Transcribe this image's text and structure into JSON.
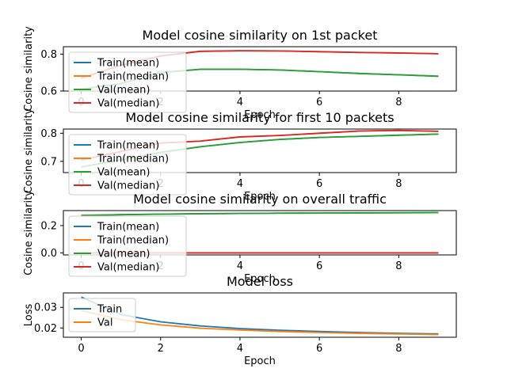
{
  "chart_data": [
    {
      "type": "line",
      "title": "Model cosine similarity on 1st packet",
      "xlabel": "Epoch",
      "ylabel": "Cosine similarity",
      "xlim": [
        -0.45,
        9.45
      ],
      "ylim": [
        0.6,
        0.84
      ],
      "xticks": [
        0,
        2,
        4,
        6,
        8
      ],
      "yticks": [
        0.6,
        0.8
      ],
      "grid": false,
      "legend": "upper left",
      "x": [
        0,
        1,
        2,
        3,
        4,
        5,
        6,
        7,
        8,
        9
      ],
      "series": [
        {
          "name": "Train(mean)",
          "color": "#1f77b4",
          "values": [
            0.61,
            0.64,
            0.7,
            0.718,
            0.718,
            0.714,
            0.705,
            0.695,
            0.688,
            0.68
          ]
        },
        {
          "name": "Train(median)",
          "color": "#ff7f0e",
          "values": [
            0.67,
            0.74,
            0.79,
            0.815,
            0.818,
            0.817,
            0.813,
            0.809,
            0.806,
            0.802
          ]
        },
        {
          "name": "Val(mean)",
          "color": "#2ca02c",
          "values": [
            0.61,
            0.64,
            0.7,
            0.718,
            0.718,
            0.714,
            0.705,
            0.695,
            0.688,
            0.68
          ]
        },
        {
          "name": "Val(median)",
          "color": "#d62728",
          "values": [
            0.67,
            0.74,
            0.79,
            0.815,
            0.818,
            0.817,
            0.813,
            0.809,
            0.806,
            0.802
          ]
        }
      ]
    },
    {
      "type": "line",
      "title": "Model cosine similarity for first 10 packets",
      "xlabel": "Epoch",
      "ylabel": "Cosine similarity",
      "xlim": [
        -0.45,
        9.45
      ],
      "ylim": [
        0.66,
        0.815
      ],
      "xticks": [
        0,
        2,
        4,
        6,
        8
      ],
      "yticks": [
        0.7,
        0.8
      ],
      "grid": false,
      "legend": "upper left",
      "x": [
        0,
        1,
        2,
        3,
        4,
        5,
        6,
        7,
        8,
        9
      ],
      "series": [
        {
          "name": "Train(mean)",
          "color": "#1f77b4",
          "values": [
            0.68,
            0.705,
            0.732,
            0.752,
            0.767,
            0.778,
            0.785,
            0.789,
            0.793,
            0.797
          ]
        },
        {
          "name": "Train(median)",
          "color": "#ff7f0e",
          "values": [
            0.705,
            0.735,
            0.765,
            0.772,
            0.787,
            0.792,
            0.8,
            0.808,
            0.81,
            0.807
          ]
        },
        {
          "name": "Val(mean)",
          "color": "#2ca02c",
          "values": [
            0.68,
            0.705,
            0.732,
            0.752,
            0.767,
            0.778,
            0.785,
            0.789,
            0.793,
            0.797
          ]
        },
        {
          "name": "Val(median)",
          "color": "#d62728",
          "values": [
            0.705,
            0.735,
            0.765,
            0.772,
            0.787,
            0.792,
            0.8,
            0.808,
            0.81,
            0.807
          ]
        }
      ]
    },
    {
      "type": "line",
      "title": "Model cosine similarity on overall traffic",
      "xlabel": "Epoch",
      "ylabel": "Cosine similarity",
      "xlim": [
        -0.45,
        9.45
      ],
      "ylim": [
        -0.015,
        0.31
      ],
      "xticks": [
        0,
        2,
        4,
        6,
        8
      ],
      "yticks": [
        0.0,
        0.2
      ],
      "grid": false,
      "legend": "upper left",
      "x": [
        0,
        1,
        2,
        3,
        4,
        5,
        6,
        7,
        8,
        9
      ],
      "series": [
        {
          "name": "Train(mean)",
          "color": "#1f77b4",
          "values": [
            0.275,
            0.28,
            0.284,
            0.287,
            0.289,
            0.291,
            0.292,
            0.293,
            0.294,
            0.295
          ]
        },
        {
          "name": "Train(median)",
          "color": "#ff7f0e",
          "values": [
            0.0,
            0.0,
            0.0,
            0.0,
            0.0,
            0.0,
            0.0,
            0.0,
            0.0,
            0.0
          ]
        },
        {
          "name": "Val(mean)",
          "color": "#2ca02c",
          "values": [
            0.275,
            0.28,
            0.284,
            0.287,
            0.289,
            0.291,
            0.292,
            0.293,
            0.294,
            0.295
          ]
        },
        {
          "name": "Val(median)",
          "color": "#d62728",
          "values": [
            0.0,
            0.0,
            0.0,
            0.0,
            0.0,
            0.0,
            0.0,
            0.0,
            0.0,
            0.0
          ]
        }
      ]
    },
    {
      "type": "line",
      "title": "Model loss",
      "xlabel": "Epoch",
      "ylabel": "Loss",
      "xlim": [
        -0.45,
        9.45
      ],
      "ylim": [
        0.0155,
        0.037
      ],
      "xticks": [
        0,
        2,
        4,
        6,
        8
      ],
      "yticks": [
        0.02,
        0.03
      ],
      "grid": false,
      "legend": "upper left",
      "x": [
        0,
        1,
        2,
        3,
        4,
        5,
        6,
        7,
        8,
        9
      ],
      "series": [
        {
          "name": "Train",
          "color": "#1f77b4",
          "values": [
            0.035,
            0.0265,
            0.023,
            0.021,
            0.0197,
            0.0189,
            0.0183,
            0.0178,
            0.0174,
            0.0171
          ]
        },
        {
          "name": "Val",
          "color": "#ff7f0e",
          "values": [
            0.0285,
            0.024,
            0.0215,
            0.0199,
            0.019,
            0.0183,
            0.0178,
            0.0174,
            0.0171,
            0.0168
          ]
        }
      ]
    }
  ]
}
